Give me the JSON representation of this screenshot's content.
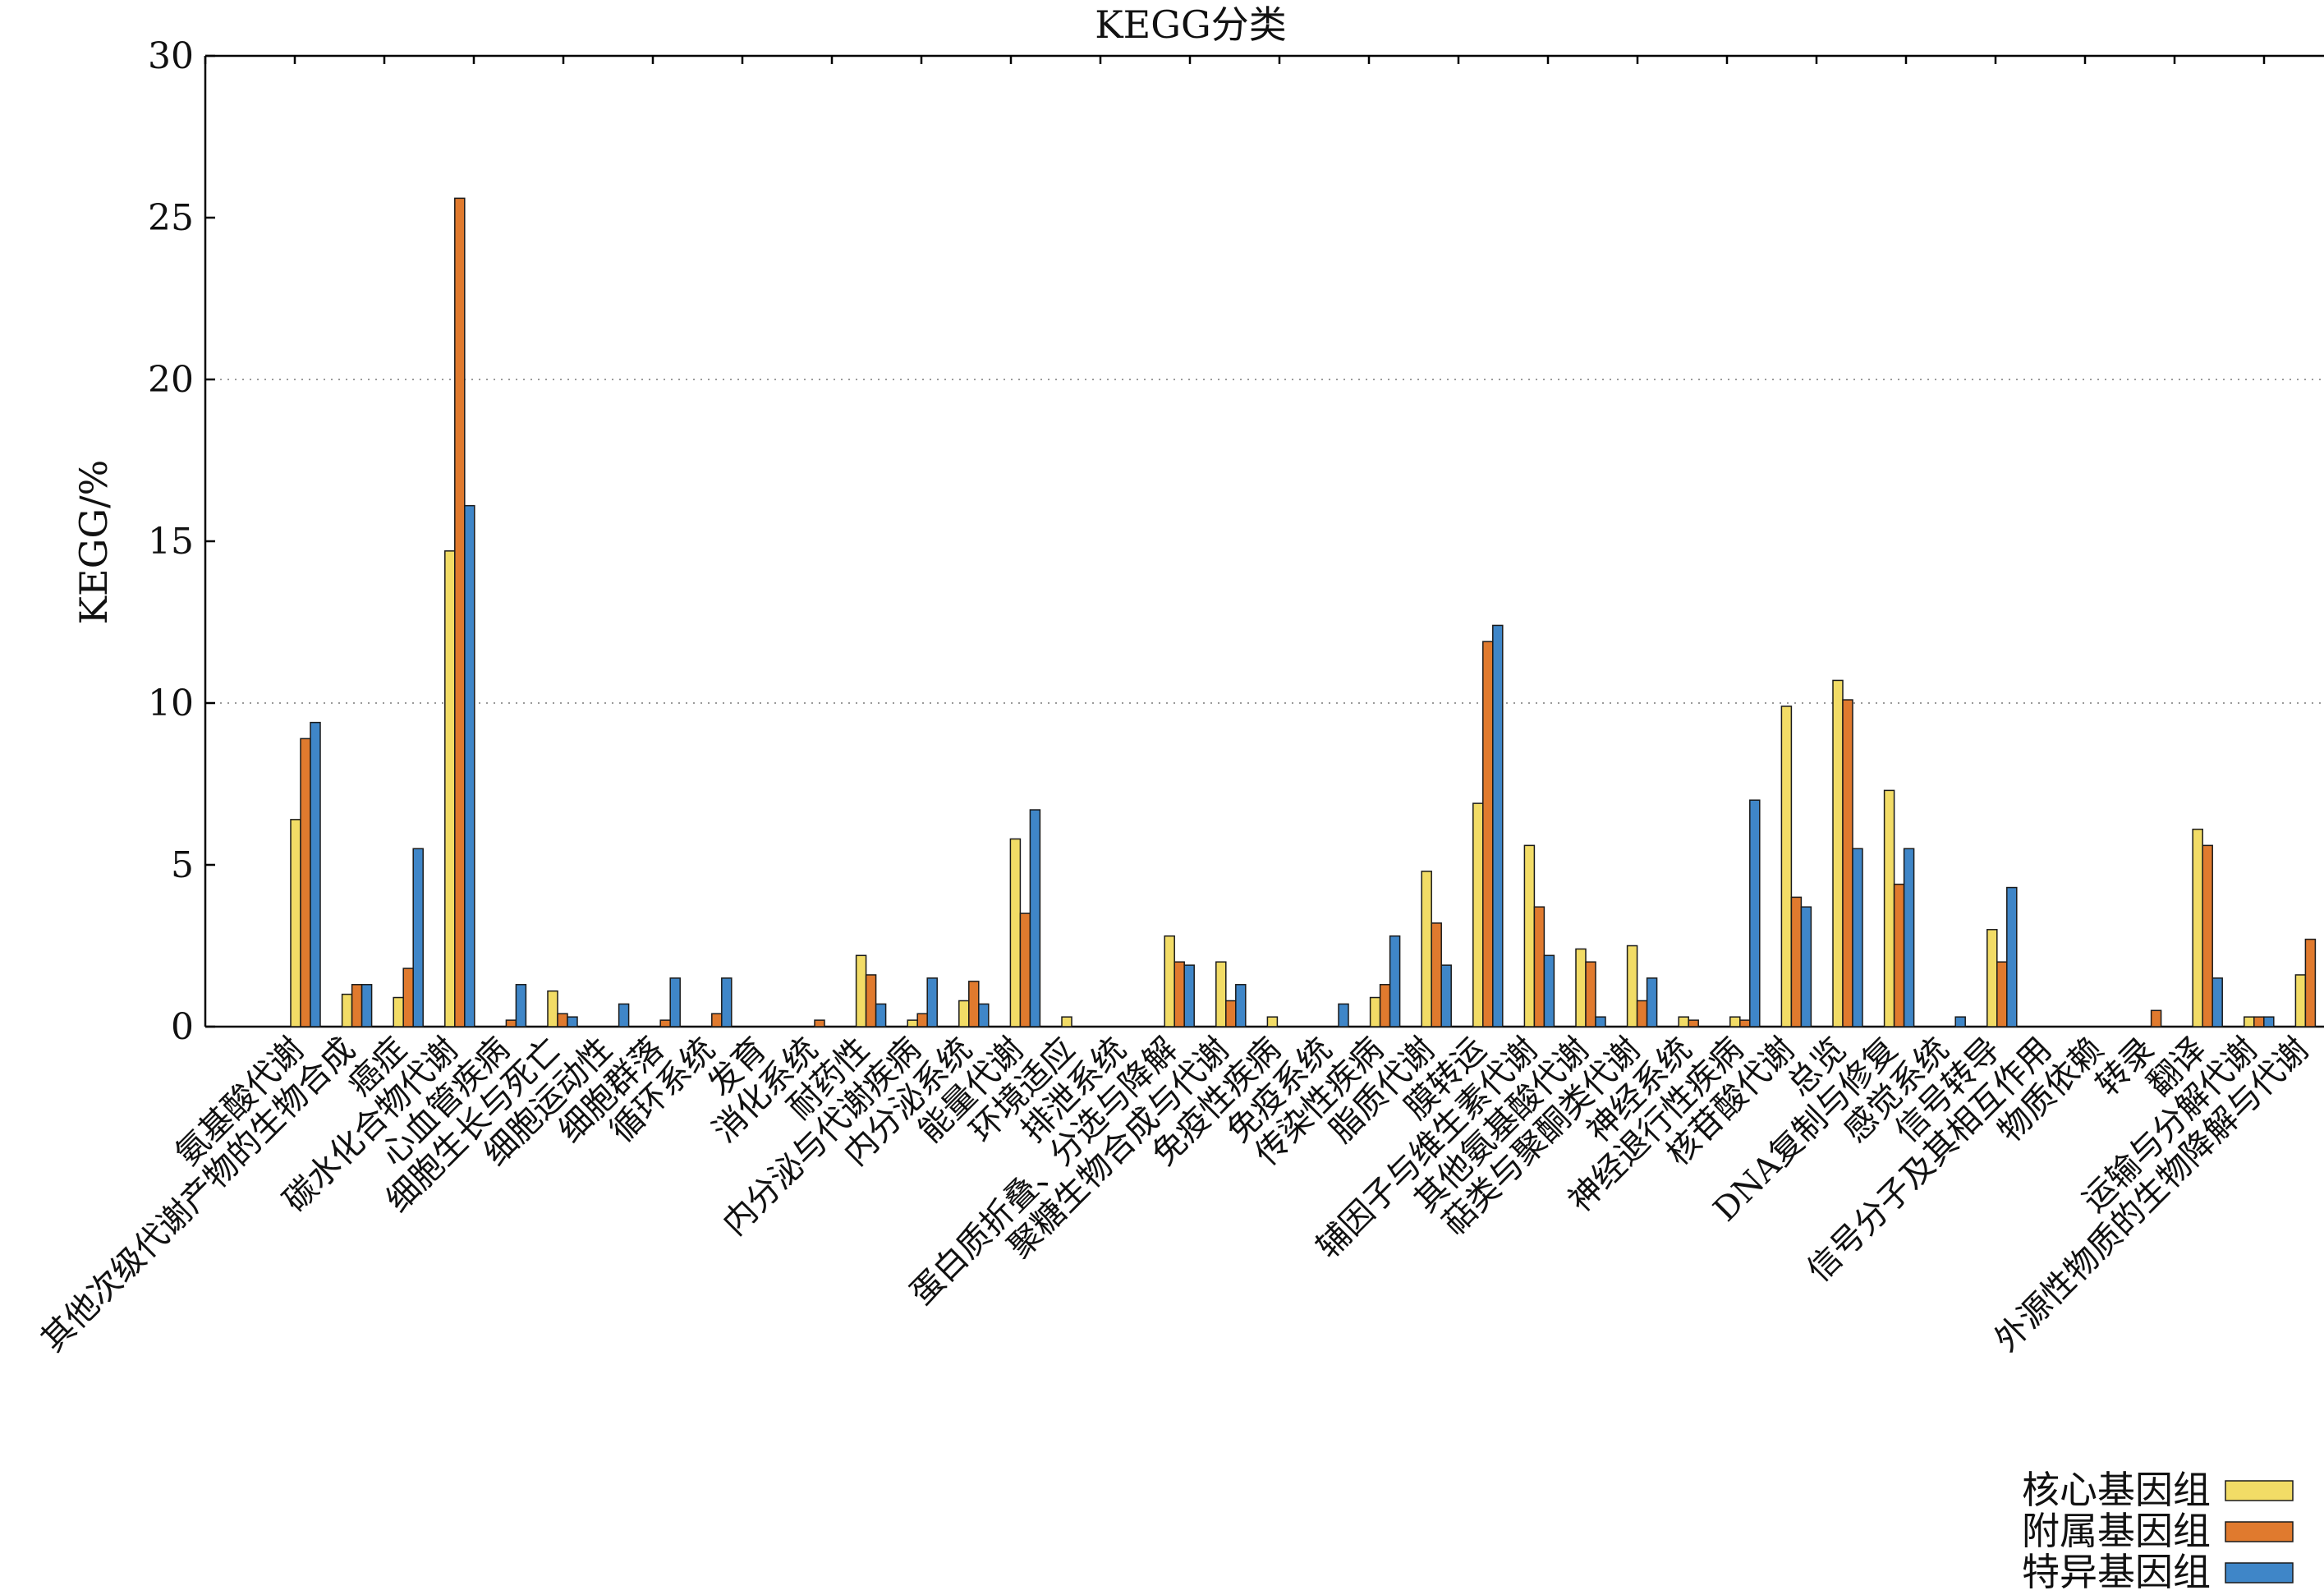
{
  "chart_data": {
    "type": "bar",
    "title": "KEGG分类",
    "xlabel": "",
    "ylabel": "KEGG/%",
    "ylim": [
      0,
      30
    ],
    "yticks": [
      "0",
      "5",
      "10",
      "15",
      "20",
      "25",
      "30"
    ],
    "grid": "horizontal dotted at 10 and 20",
    "legend_position": "bottom-right",
    "categories": [
      "氨基酸代谢",
      "其他次级代谢产物的生物合成",
      "癌症",
      "碳水化合物代谢",
      "心血管疾病",
      "细胞生长与死亡",
      "细胞运动性",
      "细胞群落",
      "循环系统",
      "发育",
      "消化系统",
      "耐药性",
      "内分泌与代谢疾病",
      "内分泌系统",
      "能量代谢",
      "环境适应",
      "排泄系统",
      "蛋白质折叠、分选与降解",
      "聚糖生物合成与代谢",
      "免疫性疾病",
      "免疫系统",
      "传染性疾病",
      "脂质代谢",
      "膜转运",
      "辅因子与维生素代谢",
      "其他氨基酸代谢",
      "萜类与聚酮类代谢",
      "神经系统",
      "神经退行性疾病",
      "核苷酸代谢",
      "总览",
      "DNA复制与修复",
      "感觉系统",
      "信号转导",
      "信号分子及其相互作用",
      "物质依赖",
      "转录",
      "翻译",
      "运输与分解代谢",
      "外源性物质的生物降解与代谢"
    ],
    "series": [
      {
        "name": "核心基因组",
        "color": "#f2dc66",
        "values": [
          6.4,
          1.0,
          0.9,
          14.7,
          0.0,
          1.1,
          0.0,
          0.0,
          0.0,
          0.0,
          0.0,
          2.2,
          0.2,
          0.8,
          5.8,
          0.3,
          0.0,
          2.8,
          2.0,
          0.3,
          0.0,
          0.9,
          4.8,
          6.9,
          5.6,
          2.4,
          2.5,
          0.3,
          0.3,
          9.9,
          10.7,
          7.3,
          0.0,
          3.0,
          0.0,
          0.0,
          0.0,
          6.1,
          0.3,
          1.6
        ]
      },
      {
        "name": "附属基因组",
        "color": "#e07a2e",
        "values": [
          8.9,
          1.3,
          1.8,
          25.6,
          0.2,
          0.4,
          0.0,
          0.2,
          0.4,
          0.0,
          0.2,
          1.6,
          0.4,
          1.4,
          3.5,
          0.0,
          0.0,
          2.0,
          0.8,
          0.0,
          0.0,
          1.3,
          3.2,
          11.9,
          3.7,
          2.0,
          0.8,
          0.2,
          0.2,
          4.0,
          10.1,
          4.4,
          0.0,
          2.0,
          0.0,
          0.0,
          0.5,
          5.6,
          0.3,
          2.7
        ]
      },
      {
        "name": "特异基因组",
        "color": "#3f86c8",
        "values": [
          9.4,
          1.3,
          5.5,
          16.1,
          1.3,
          0.3,
          0.7,
          1.5,
          1.5,
          0.0,
          0.0,
          0.7,
          1.5,
          0.7,
          6.7,
          0.0,
          0.0,
          1.9,
          1.3,
          0.0,
          0.7,
          2.8,
          1.9,
          12.4,
          2.2,
          0.3,
          1.5,
          0.0,
          7.0,
          3.7,
          5.5,
          5.5,
          0.3,
          4.3,
          0.0,
          0.0,
          0.0,
          1.5,
          0.3,
          0.0
        ]
      }
    ]
  }
}
